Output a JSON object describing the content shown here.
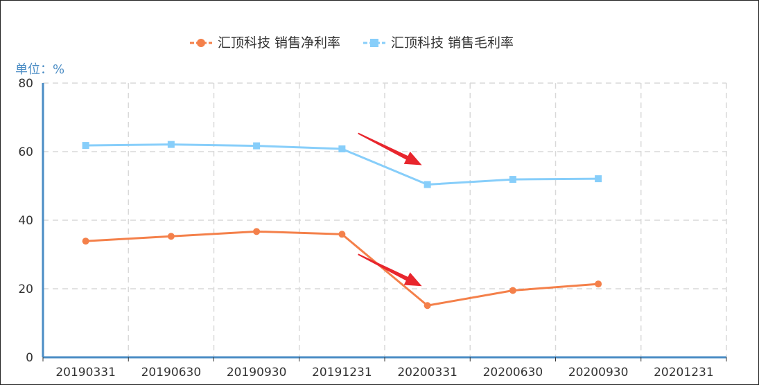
{
  "chart_data": {
    "type": "line",
    "unit_label": "单位：%",
    "categories": [
      "20190331",
      "20190630",
      "20190930",
      "20191231",
      "20200331",
      "20200630",
      "20200930",
      "20201231"
    ],
    "ylim": [
      0,
      80
    ],
    "yticks": [
      "0",
      "20",
      "40",
      "60",
      "80"
    ],
    "grid": true,
    "legend_position": "top-center",
    "series": [
      {
        "name": "汇顶科技 销售净利率",
        "color": "#f4804a",
        "marker": "circle",
        "values": [
          33.9,
          35.3,
          36.7,
          35.9,
          15.1,
          19.5,
          21.4,
          null
        ]
      },
      {
        "name": "汇顶科技 销售毛利率",
        "color": "#87cefa",
        "marker": "square",
        "values": [
          61.8,
          62.1,
          61.7,
          60.8,
          50.4,
          51.9,
          52.1,
          null
        ]
      }
    ],
    "annotations": [
      {
        "type": "arrow",
        "color": "#e8262d",
        "target_category": "20200331",
        "target_series": "汇顶科技 销售毛利率"
      },
      {
        "type": "arrow",
        "color": "#e8262d",
        "target_category": "20200331",
        "target_series": "汇顶科技 销售净利率"
      }
    ],
    "colors": {
      "axis": "#4a8cc4",
      "grid": "#d9d9d9",
      "unit_label": "#4a8cc4"
    }
  }
}
